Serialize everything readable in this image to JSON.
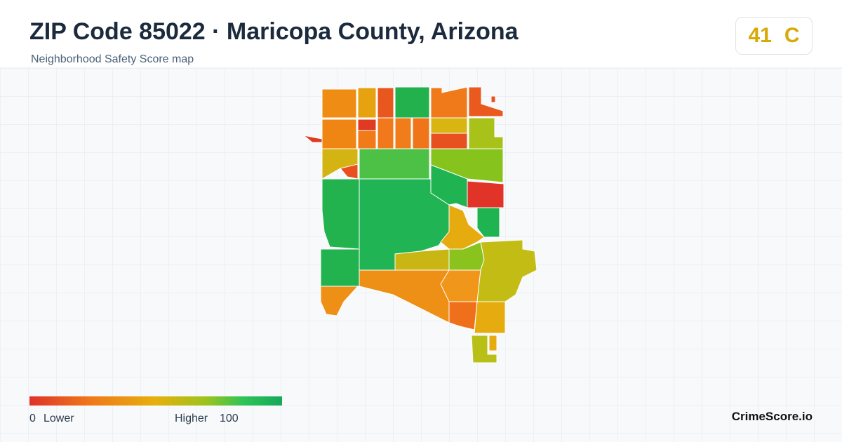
{
  "header": {
    "title": "ZIP Code 85022 · Maricopa County, Arizona",
    "subtitle": "Neighborhood Safety Score map"
  },
  "score": {
    "value": 41,
    "grade": "C"
  },
  "legend": {
    "min": 0,
    "min_label": "Lower",
    "max_label": "Higher",
    "max": 100
  },
  "footer": {
    "brand": "CrimeScore.io"
  }
}
